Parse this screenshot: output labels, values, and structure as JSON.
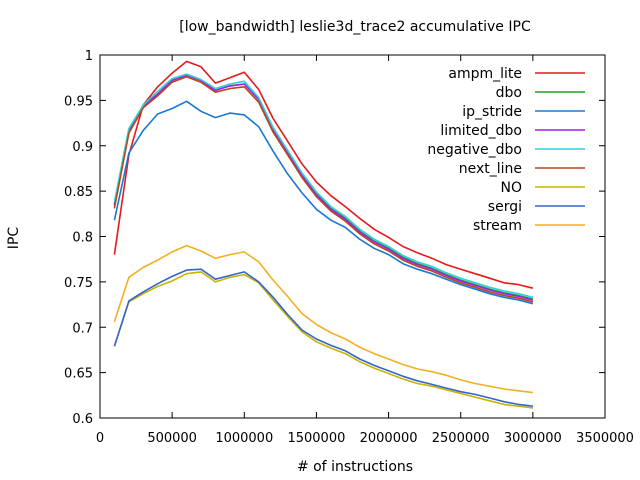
{
  "chart_data": {
    "type": "line",
    "title": "[low_bandwidth] leslie3d_trace2 accumulative IPC",
    "xlabel": "# of instructions",
    "ylabel": "IPC",
    "xlim": [
      0,
      3500000
    ],
    "ylim": [
      0.6,
      1.0
    ],
    "xticks": [
      0,
      500000,
      1000000,
      1500000,
      2000000,
      2500000,
      3000000,
      3500000
    ],
    "xtick_labels": [
      "0",
      "500000",
      "1000000",
      "1500000",
      "2000000",
      "2500000",
      "3000000",
      "3500000"
    ],
    "yticks": [
      0.6,
      0.65,
      0.7,
      0.75,
      0.8,
      0.85,
      0.9,
      0.95,
      1.0
    ],
    "ytick_labels": [
      "0.6",
      "0.65",
      "0.7",
      "0.75",
      "0.8",
      "0.85",
      "0.9",
      "0.95",
      "1"
    ],
    "grid": false,
    "legend_position": "top-right",
    "x": [
      100000,
      200000,
      300000,
      400000,
      500000,
      600000,
      700000,
      800000,
      900000,
      1000000,
      1100000,
      1200000,
      1300000,
      1400000,
      1500000,
      1600000,
      1700000,
      1800000,
      1900000,
      2000000,
      2100000,
      2200000,
      2300000,
      2400000,
      2500000,
      2600000,
      2700000,
      2800000,
      2900000,
      3000000
    ],
    "series": [
      {
        "name": "ampm_lite",
        "color": "#e41a1c",
        "values": [
          0.78,
          0.89,
          0.945,
          0.965,
          0.98,
          0.993,
          0.987,
          0.969,
          0.975,
          0.981,
          0.962,
          0.93,
          0.905,
          0.88,
          0.86,
          0.845,
          0.833,
          0.82,
          0.808,
          0.799,
          0.789,
          0.782,
          0.776,
          0.769,
          0.764,
          0.759,
          0.754,
          0.749,
          0.747,
          0.743
        ]
      },
      {
        "name": "dbo",
        "color": "#1fa11f",
        "values": [
          0.835,
          0.918,
          0.944,
          0.957,
          0.972,
          0.978,
          0.972,
          0.961,
          0.966,
          0.968,
          0.951,
          0.918,
          0.893,
          0.868,
          0.847,
          0.831,
          0.82,
          0.806,
          0.795,
          0.787,
          0.777,
          0.77,
          0.765,
          0.758,
          0.752,
          0.747,
          0.742,
          0.738,
          0.735,
          0.731
        ]
      },
      {
        "name": "ip_stride",
        "color": "#1a78d4",
        "values": [
          0.818,
          0.892,
          0.917,
          0.935,
          0.941,
          0.949,
          0.938,
          0.931,
          0.936,
          0.934,
          0.921,
          0.894,
          0.869,
          0.848,
          0.83,
          0.818,
          0.81,
          0.797,
          0.787,
          0.78,
          0.77,
          0.764,
          0.759,
          0.753,
          0.747,
          0.742,
          0.737,
          0.733,
          0.73,
          0.726
        ]
      },
      {
        "name": "limited_dbo",
        "color": "#a020f0",
        "values": [
          0.834,
          0.917,
          0.944,
          0.957,
          0.972,
          0.978,
          0.972,
          0.961,
          0.966,
          0.968,
          0.951,
          0.918,
          0.893,
          0.867,
          0.846,
          0.83,
          0.819,
          0.805,
          0.794,
          0.786,
          0.776,
          0.769,
          0.764,
          0.757,
          0.751,
          0.746,
          0.741,
          0.737,
          0.734,
          0.73
        ]
      },
      {
        "name": "negative_dbo",
        "color": "#2ad4d4",
        "values": [
          0.838,
          0.919,
          0.945,
          0.96,
          0.974,
          0.979,
          0.973,
          0.963,
          0.968,
          0.971,
          0.953,
          0.92,
          0.895,
          0.87,
          0.849,
          0.833,
          0.822,
          0.808,
          0.797,
          0.789,
          0.779,
          0.772,
          0.767,
          0.76,
          0.754,
          0.749,
          0.744,
          0.74,
          0.737,
          0.733
        ]
      },
      {
        "name": "next_line",
        "color": "#b8451b",
        "values": [
          0.831,
          0.914,
          0.942,
          0.955,
          0.97,
          0.976,
          0.97,
          0.959,
          0.963,
          0.965,
          0.948,
          0.915,
          0.89,
          0.865,
          0.844,
          0.828,
          0.817,
          0.803,
          0.792,
          0.784,
          0.774,
          0.767,
          0.762,
          0.755,
          0.749,
          0.744,
          0.739,
          0.735,
          0.732,
          0.728
        ]
      },
      {
        "name": "NO",
        "color": "#c8b400",
        "values": [
          0.679,
          0.728,
          0.737,
          0.745,
          0.751,
          0.759,
          0.761,
          0.75,
          0.755,
          0.758,
          0.749,
          0.73,
          0.712,
          0.695,
          0.684,
          0.677,
          0.671,
          0.662,
          0.655,
          0.649,
          0.643,
          0.638,
          0.635,
          0.631,
          0.627,
          0.623,
          0.619,
          0.615,
          0.613,
          0.611
        ]
      },
      {
        "name": "sergi",
        "color": "#3366cc",
        "values": [
          0.679,
          0.729,
          0.739,
          0.748,
          0.756,
          0.763,
          0.764,
          0.753,
          0.757,
          0.761,
          0.75,
          0.733,
          0.714,
          0.697,
          0.687,
          0.68,
          0.674,
          0.665,
          0.658,
          0.652,
          0.646,
          0.641,
          0.637,
          0.633,
          0.629,
          0.626,
          0.622,
          0.618,
          0.615,
          0.613
        ]
      },
      {
        "name": "stream",
        "color": "#f2b01e",
        "values": [
          0.706,
          0.755,
          0.766,
          0.774,
          0.783,
          0.79,
          0.784,
          0.776,
          0.78,
          0.783,
          0.772,
          0.752,
          0.734,
          0.715,
          0.703,
          0.694,
          0.687,
          0.678,
          0.671,
          0.665,
          0.659,
          0.654,
          0.651,
          0.647,
          0.642,
          0.638,
          0.635,
          0.632,
          0.63,
          0.628
        ]
      }
    ]
  }
}
